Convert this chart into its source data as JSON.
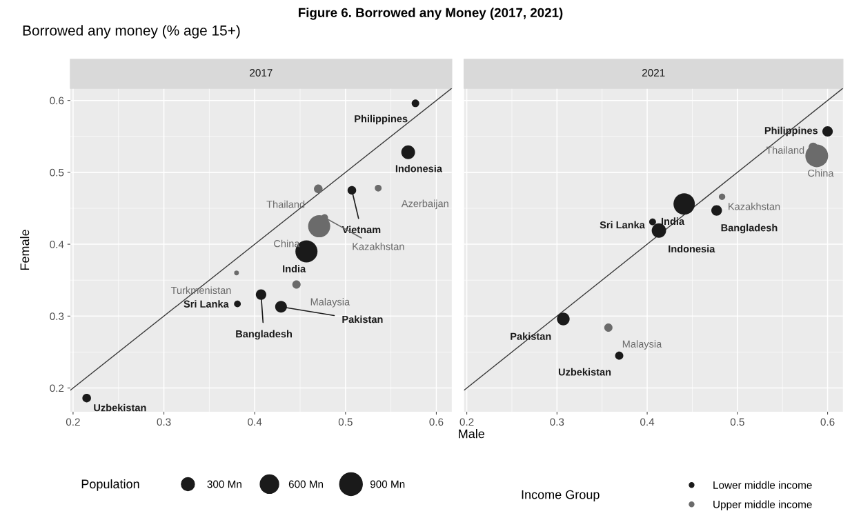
{
  "chart_data": [
    {
      "type": "bubble",
      "title": "2017",
      "subtitle": "Borrowed any money (% age 15+)",
      "xlabel": "Male",
      "ylabel": "Female",
      "xlim": [
        0.197,
        0.617
      ],
      "ylim": [
        0.167,
        0.617
      ],
      "xticks": [
        0.2,
        0.3,
        0.4,
        0.5,
        0.6
      ],
      "yticks": [
        0.2,
        0.3,
        0.4,
        0.5,
        0.6
      ],
      "grid": true,
      "legend": "bottom",
      "legend_title": "Population",
      "size_legend": [
        {
          "value": 300,
          "label": "300 Mn"
        },
        {
          "value": 600,
          "label": "600 Mn"
        },
        {
          "value": 900,
          "label": "900 Mn"
        }
      ],
      "series": [
        {
          "color": "#1a1a1a",
          "x": [
            0.577,
            0.569,
            0.507,
            0.457,
            0.407,
            0.381,
            0.429,
            0.215
          ],
          "values": [
            0.596,
            0.528,
            0.475,
            0.39,
            0.33,
            0.317,
            0.313,
            0.186
          ],
          "sizes": [
            100,
            330,
            130,
            850,
            190,
            80,
            240,
            130
          ]
        },
        {
          "color": "#6b6b6b",
          "x": [
            0.47,
            0.536,
            0.477,
            0.471,
            0.38,
            0.446
          ],
          "values": [
            0.477,
            0.478,
            0.437,
            0.425,
            0.36,
            0.344
          ],
          "sizes": [
            130,
            80,
            80,
            850,
            40,
            120
          ]
        },
        {
          "type": "line",
          "color": "#3a3a3a",
          "x": [
            0.197,
            0.617
          ],
          "values": [
            0.197,
            0.617
          ]
        }
      ],
      "annotations": [
        "Figure 6. Borrowed any Money (2017, 2021)",
        {
          "text": "Philippines",
          "x": 0.577,
          "y": 0.596
        },
        {
          "text": "Indonesia",
          "x": 0.569,
          "y": 0.528
        },
        {
          "text": "Thailand",
          "x": 0.47,
          "y": 0.477
        },
        {
          "text": "Vietnam",
          "x": 0.507,
          "y": 0.475
        },
        {
          "text": "Azerbaijan",
          "x": 0.536,
          "y": 0.478
        },
        {
          "text": "Kazakhstan",
          "x": 0.477,
          "y": 0.437
        },
        {
          "text": "China",
          "x": 0.471,
          "y": 0.425
        },
        {
          "text": "India",
          "x": 0.457,
          "y": 0.39
        },
        {
          "text": "Turkmenistan",
          "x": 0.38,
          "y": 0.36
        },
        {
          "text": "Malaysia",
          "x": 0.446,
          "y": 0.344
        },
        {
          "text": "Bangladesh",
          "x": 0.407,
          "y": 0.33
        },
        {
          "text": "Sri Lanka",
          "x": 0.381,
          "y": 0.317
        },
        {
          "text": "Pakistan",
          "x": 0.429,
          "y": 0.313
        },
        {
          "text": "Uzbekistan",
          "x": 0.215,
          "y": 0.186
        }
      ]
    },
    {
      "type": "bubble",
      "title": "2021",
      "xlim": [
        0.197,
        0.617
      ],
      "ylim": [
        0.167,
        0.617
      ],
      "xticks": [
        0.2,
        0.3,
        0.4,
        0.5,
        0.6
      ],
      "yticks": [
        0.2,
        0.3,
        0.4,
        0.5,
        0.6
      ],
      "tick_labels": "x",
      "grid": true,
      "legend": "bottom",
      "legend_title": "Income Group",
      "series": [
        {
          "name": "Lower middle income",
          "color": "#1a1a1a",
          "x": [
            0.6,
            0.441,
            0.477,
            0.406,
            0.413,
            0.307,
            0.369
          ],
          "values": [
            0.557,
            0.456,
            0.447,
            0.431,
            0.419,
            0.296,
            0.245
          ],
          "sizes": [
            0.21,
            0.88,
            0.22,
            0.09,
            0.4,
            0.31,
            0.13
          ]
        },
        {
          "name": "Upper middle income",
          "color": "#6b6b6b",
          "x": [
            0.584,
            0.588,
            0.483,
            0.357
          ],
          "values": [
            0.535,
            0.523,
            0.466,
            0.284
          ],
          "sizes": [
            0.16,
            1,
            0.08,
            0.13
          ]
        },
        {
          "type": "line",
          "color": "#3a3a3a",
          "x": [
            0.197,
            0.617
          ],
          "values": [
            0.197,
            0.617
          ]
        }
      ],
      "annotations": [
        {
          "text": "Philippines",
          "x": 0.6,
          "y": 0.557
        },
        {
          "text": "Thailand",
          "x": 0.584,
          "y": 0.535
        },
        {
          "text": "China",
          "x": 0.588,
          "y": 0.523
        },
        {
          "text": "Kazakhstan",
          "x": 0.483,
          "y": 0.466
        },
        {
          "text": "India",
          "x": 0.441,
          "y": 0.456
        },
        {
          "text": "Bangladesh",
          "x": 0.477,
          "y": 0.447
        },
        {
          "text": "Sri Lanka",
          "x": 0.406,
          "y": 0.431
        },
        {
          "text": "Indonesia",
          "x": 0.413,
          "y": 0.419
        },
        {
          "text": "Pakistan",
          "x": 0.307,
          "y": 0.296
        },
        {
          "text": "Malaysia",
          "x": 0.357,
          "y": 0.284
        },
        {
          "text": "Uzbekistan",
          "x": 0.369,
          "y": 0.245
        }
      ]
    }
  ]
}
